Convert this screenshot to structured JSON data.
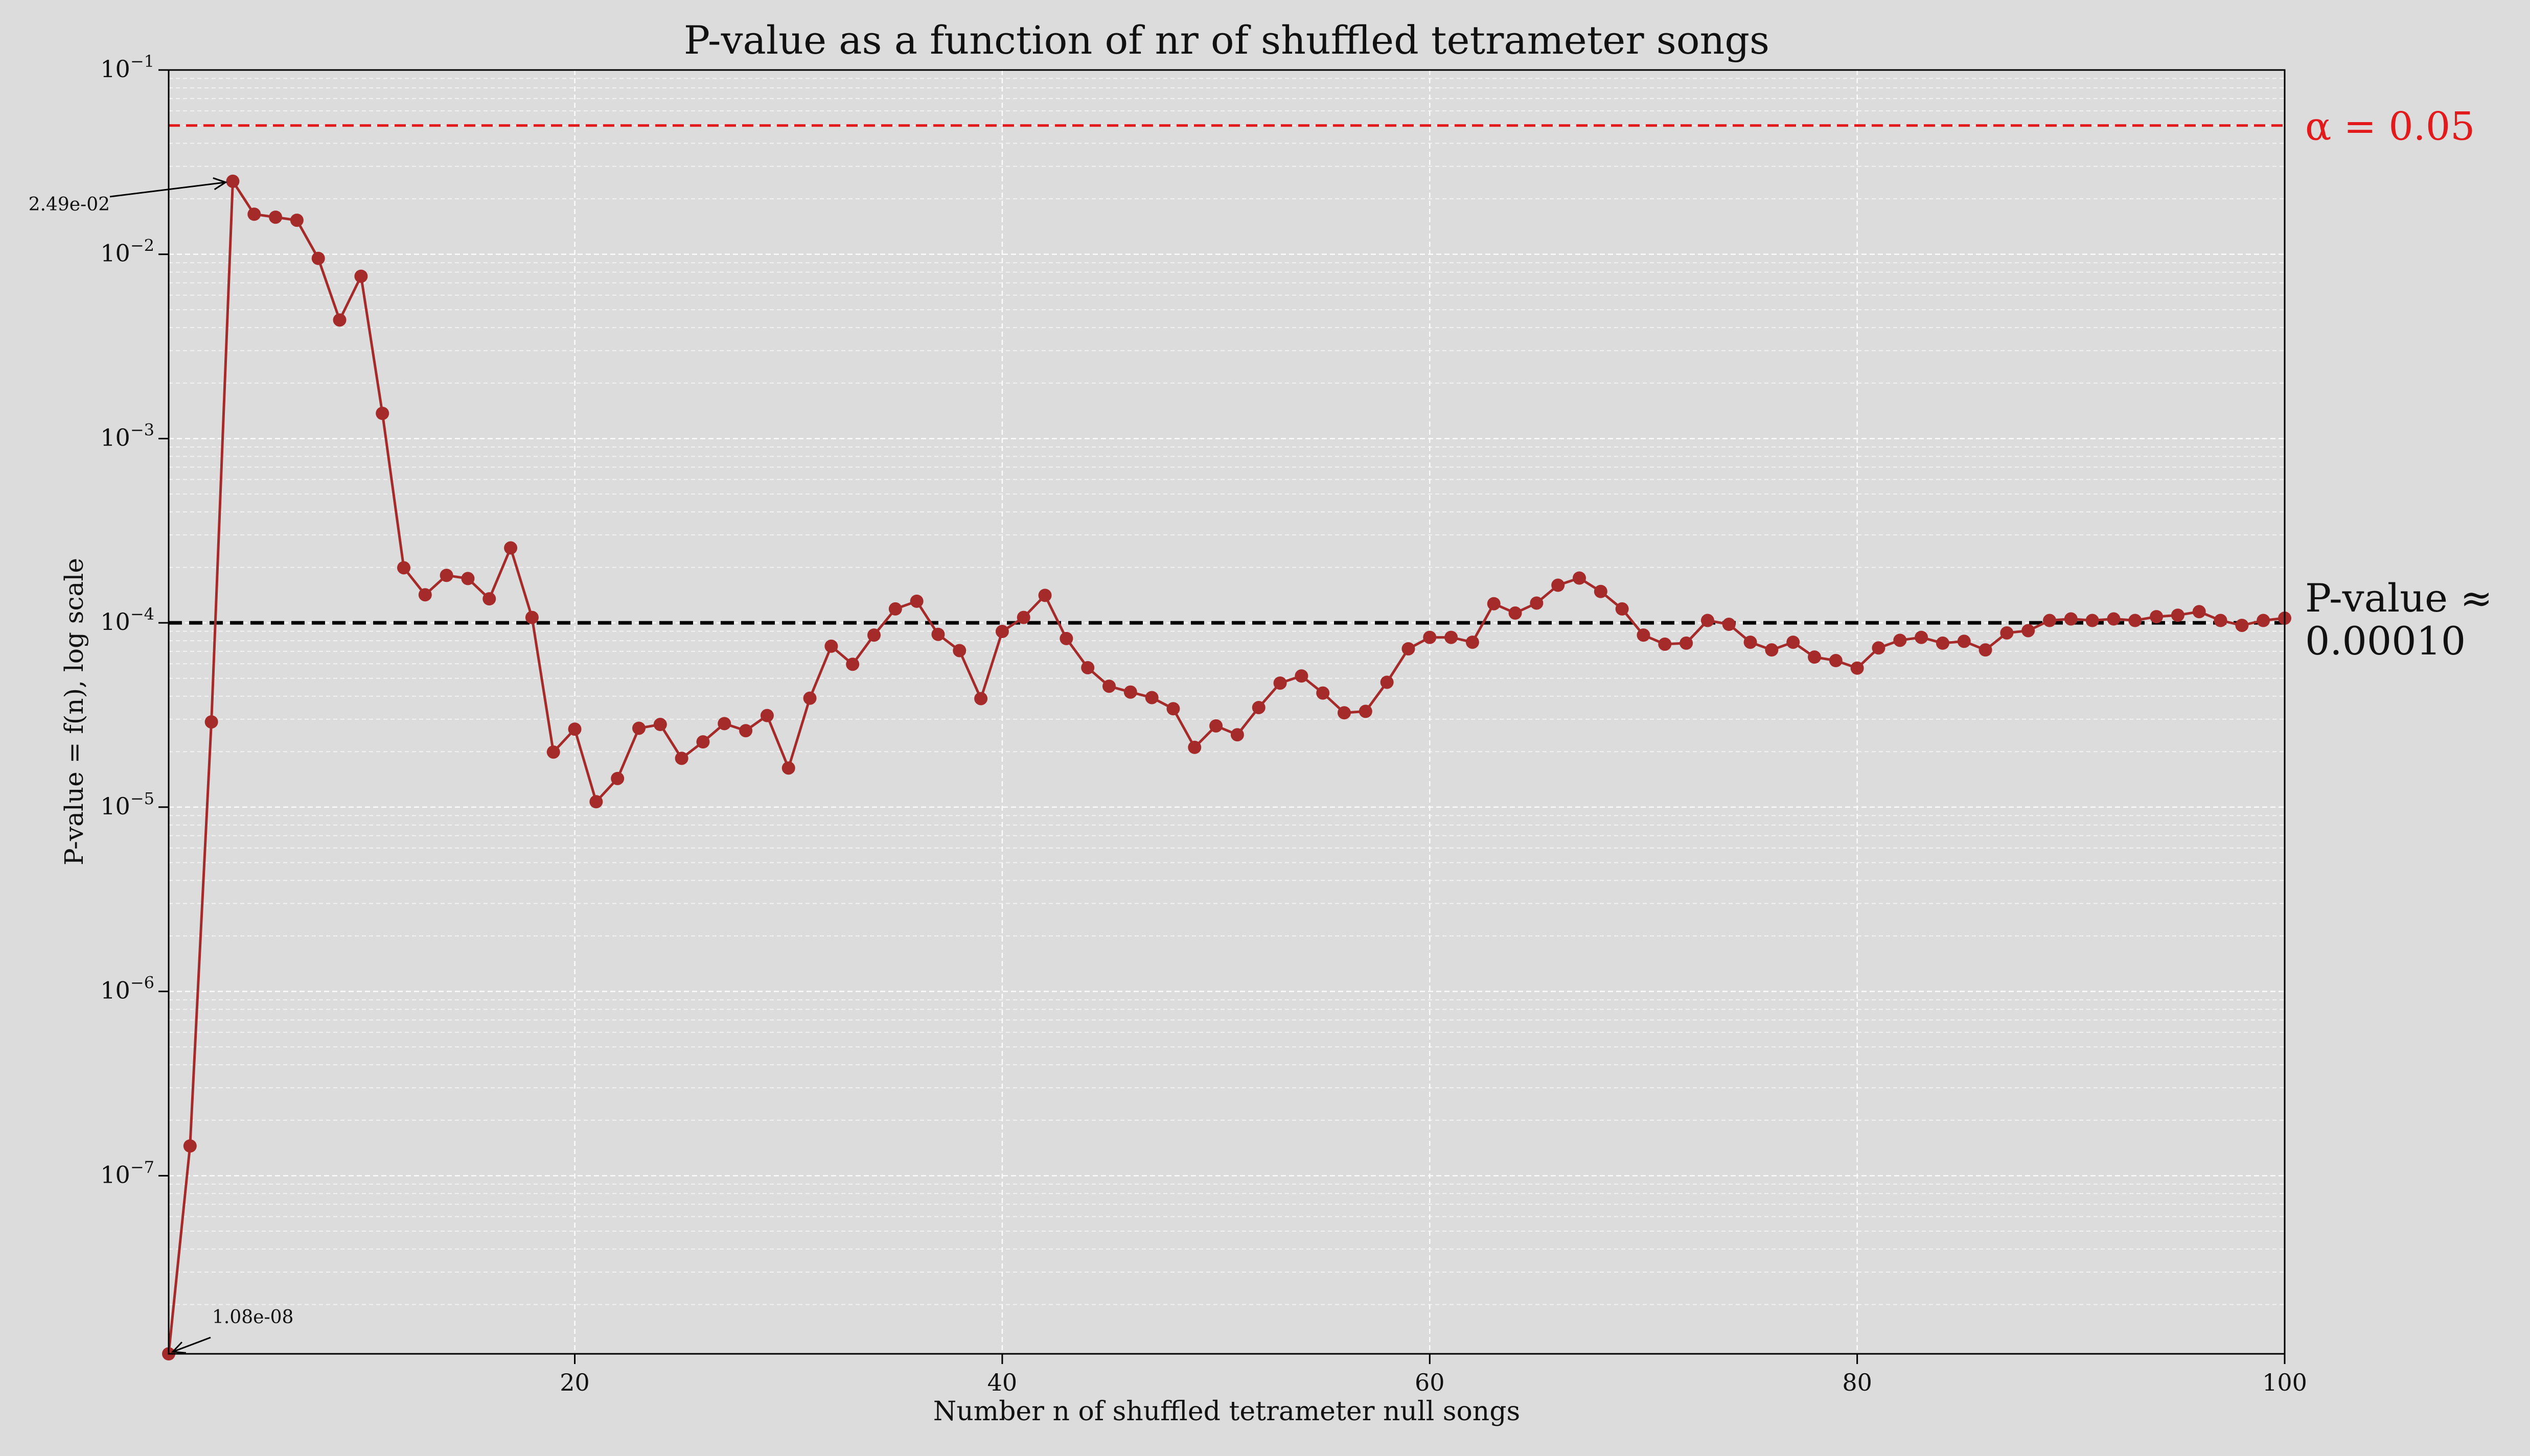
{
  "chart_data": {
    "type": "line",
    "title": "P-value as a function of nr of shuffled tetrameter songs",
    "xlabel": "Number n of shuffled tetrameter null songs",
    "ylabel": "P-value = f(n), log scale",
    "xlim": [
      1,
      100
    ],
    "ylim": [
      1.08e-08,
      0.1
    ],
    "yscale": "log",
    "grid": true,
    "xticks": [
      20,
      40,
      60,
      80,
      100
    ],
    "yticks": [
      {
        "value": 0.1,
        "base": "10",
        "exp": "−1"
      },
      {
        "value": 0.01,
        "base": "10",
        "exp": "−2"
      },
      {
        "value": 0.001,
        "base": "10",
        "exp": "−3"
      },
      {
        "value": 0.0001,
        "base": "10",
        "exp": "−4"
      },
      {
        "value": 1e-05,
        "base": "10",
        "exp": "−5"
      },
      {
        "value": 1e-06,
        "base": "10",
        "exp": "−6"
      },
      {
        "value": 1e-07,
        "base": "10",
        "exp": "−7"
      }
    ],
    "series": [
      {
        "color": "#a52a2a",
        "x": [
          1,
          2,
          3,
          4,
          5,
          6,
          7,
          8,
          9,
          10,
          11,
          12,
          13,
          14,
          15,
          16,
          17,
          18,
          19,
          20,
          21,
          22,
          23,
          24,
          25,
          26,
          27,
          28,
          29,
          30,
          31,
          32,
          33,
          34,
          35,
          36,
          37,
          38,
          39,
          40,
          41,
          42,
          43,
          44,
          45,
          46,
          47,
          48,
          49,
          50,
          51,
          52,
          53,
          54,
          55,
          56,
          57,
          58,
          59,
          60,
          61,
          62,
          63,
          64,
          65,
          66,
          67,
          68,
          69,
          70,
          71,
          72,
          73,
          74,
          75,
          76,
          77,
          78,
          79,
          80,
          81,
          82,
          83,
          84,
          85,
          86,
          87,
          88,
          89,
          90,
          91,
          92,
          93,
          94,
          95,
          96,
          97,
          98,
          99,
          100
        ],
        "y": [
          1.08e-08,
          1.45e-07,
          2.9e-05,
          0.0249,
          0.0165,
          0.0159,
          0.0153,
          0.0095,
          0.0044,
          0.0076,
          0.00137,
          0.000199,
          0.000142,
          0.000181,
          0.000174,
          0.000135,
          0.000255,
          0.000107,
          1.99e-05,
          2.65e-05,
          1.07e-05,
          1.43e-05,
          2.68e-05,
          2.81e-05,
          1.84e-05,
          2.26e-05,
          2.84e-05,
          2.6e-05,
          3.14e-05,
          1.63e-05,
          3.9e-05,
          7.47e-05,
          5.96e-05,
          8.58e-05,
          0.000119,
          0.000131,
          8.66e-05,
          7.07e-05,
          3.88e-05,
          8.98e-05,
          0.000107,
          0.000141,
          8.22e-05,
          5.71e-05,
          4.53e-05,
          4.21e-05,
          3.93e-05,
          3.42e-05,
          2.11e-05,
          2.76e-05,
          2.47e-05,
          3.47e-05,
          4.71e-05,
          5.15e-05,
          4.16e-05,
          3.25e-05,
          3.31e-05,
          4.76e-05,
          7.23e-05,
          8.34e-05,
          8.34e-05,
          7.85e-05,
          0.000127,
          0.000113,
          0.000128,
          0.00016,
          0.000175,
          0.000148,
          0.000119,
          8.58e-05,
          7.66e-05,
          7.76e-05,
          0.000103,
          9.82e-05,
          7.85e-05,
          7.13e-05,
          7.85e-05,
          6.52e-05,
          6.24e-05,
          5.68e-05,
          7.31e-05,
          8.04e-05,
          8.34e-05,
          7.76e-05,
          7.94e-05,
          7.13e-05,
          8.82e-05,
          9.07e-05,
          0.000103,
          0.000105,
          0.000103,
          0.000105,
          0.000103,
          0.000108,
          0.00011,
          0.000115,
          0.000103,
          9.69e-05,
          0.000103,
          0.000106
        ]
      }
    ],
    "reference_lines": [
      {
        "y": 0.05,
        "label": "α = 0.05",
        "color": "#e31a1c",
        "style": "dashed"
      },
      {
        "y": 0.0001,
        "label_line1": "P-value ≈",
        "label_line2": "0.00010",
        "color": "#000000",
        "style": "dashed"
      }
    ],
    "annotations": [
      {
        "text": "2.49e-02",
        "x": 4,
        "y": 0.0249
      },
      {
        "text": "1.08e-08",
        "x": 1,
        "y": 1.08e-08
      }
    ]
  }
}
